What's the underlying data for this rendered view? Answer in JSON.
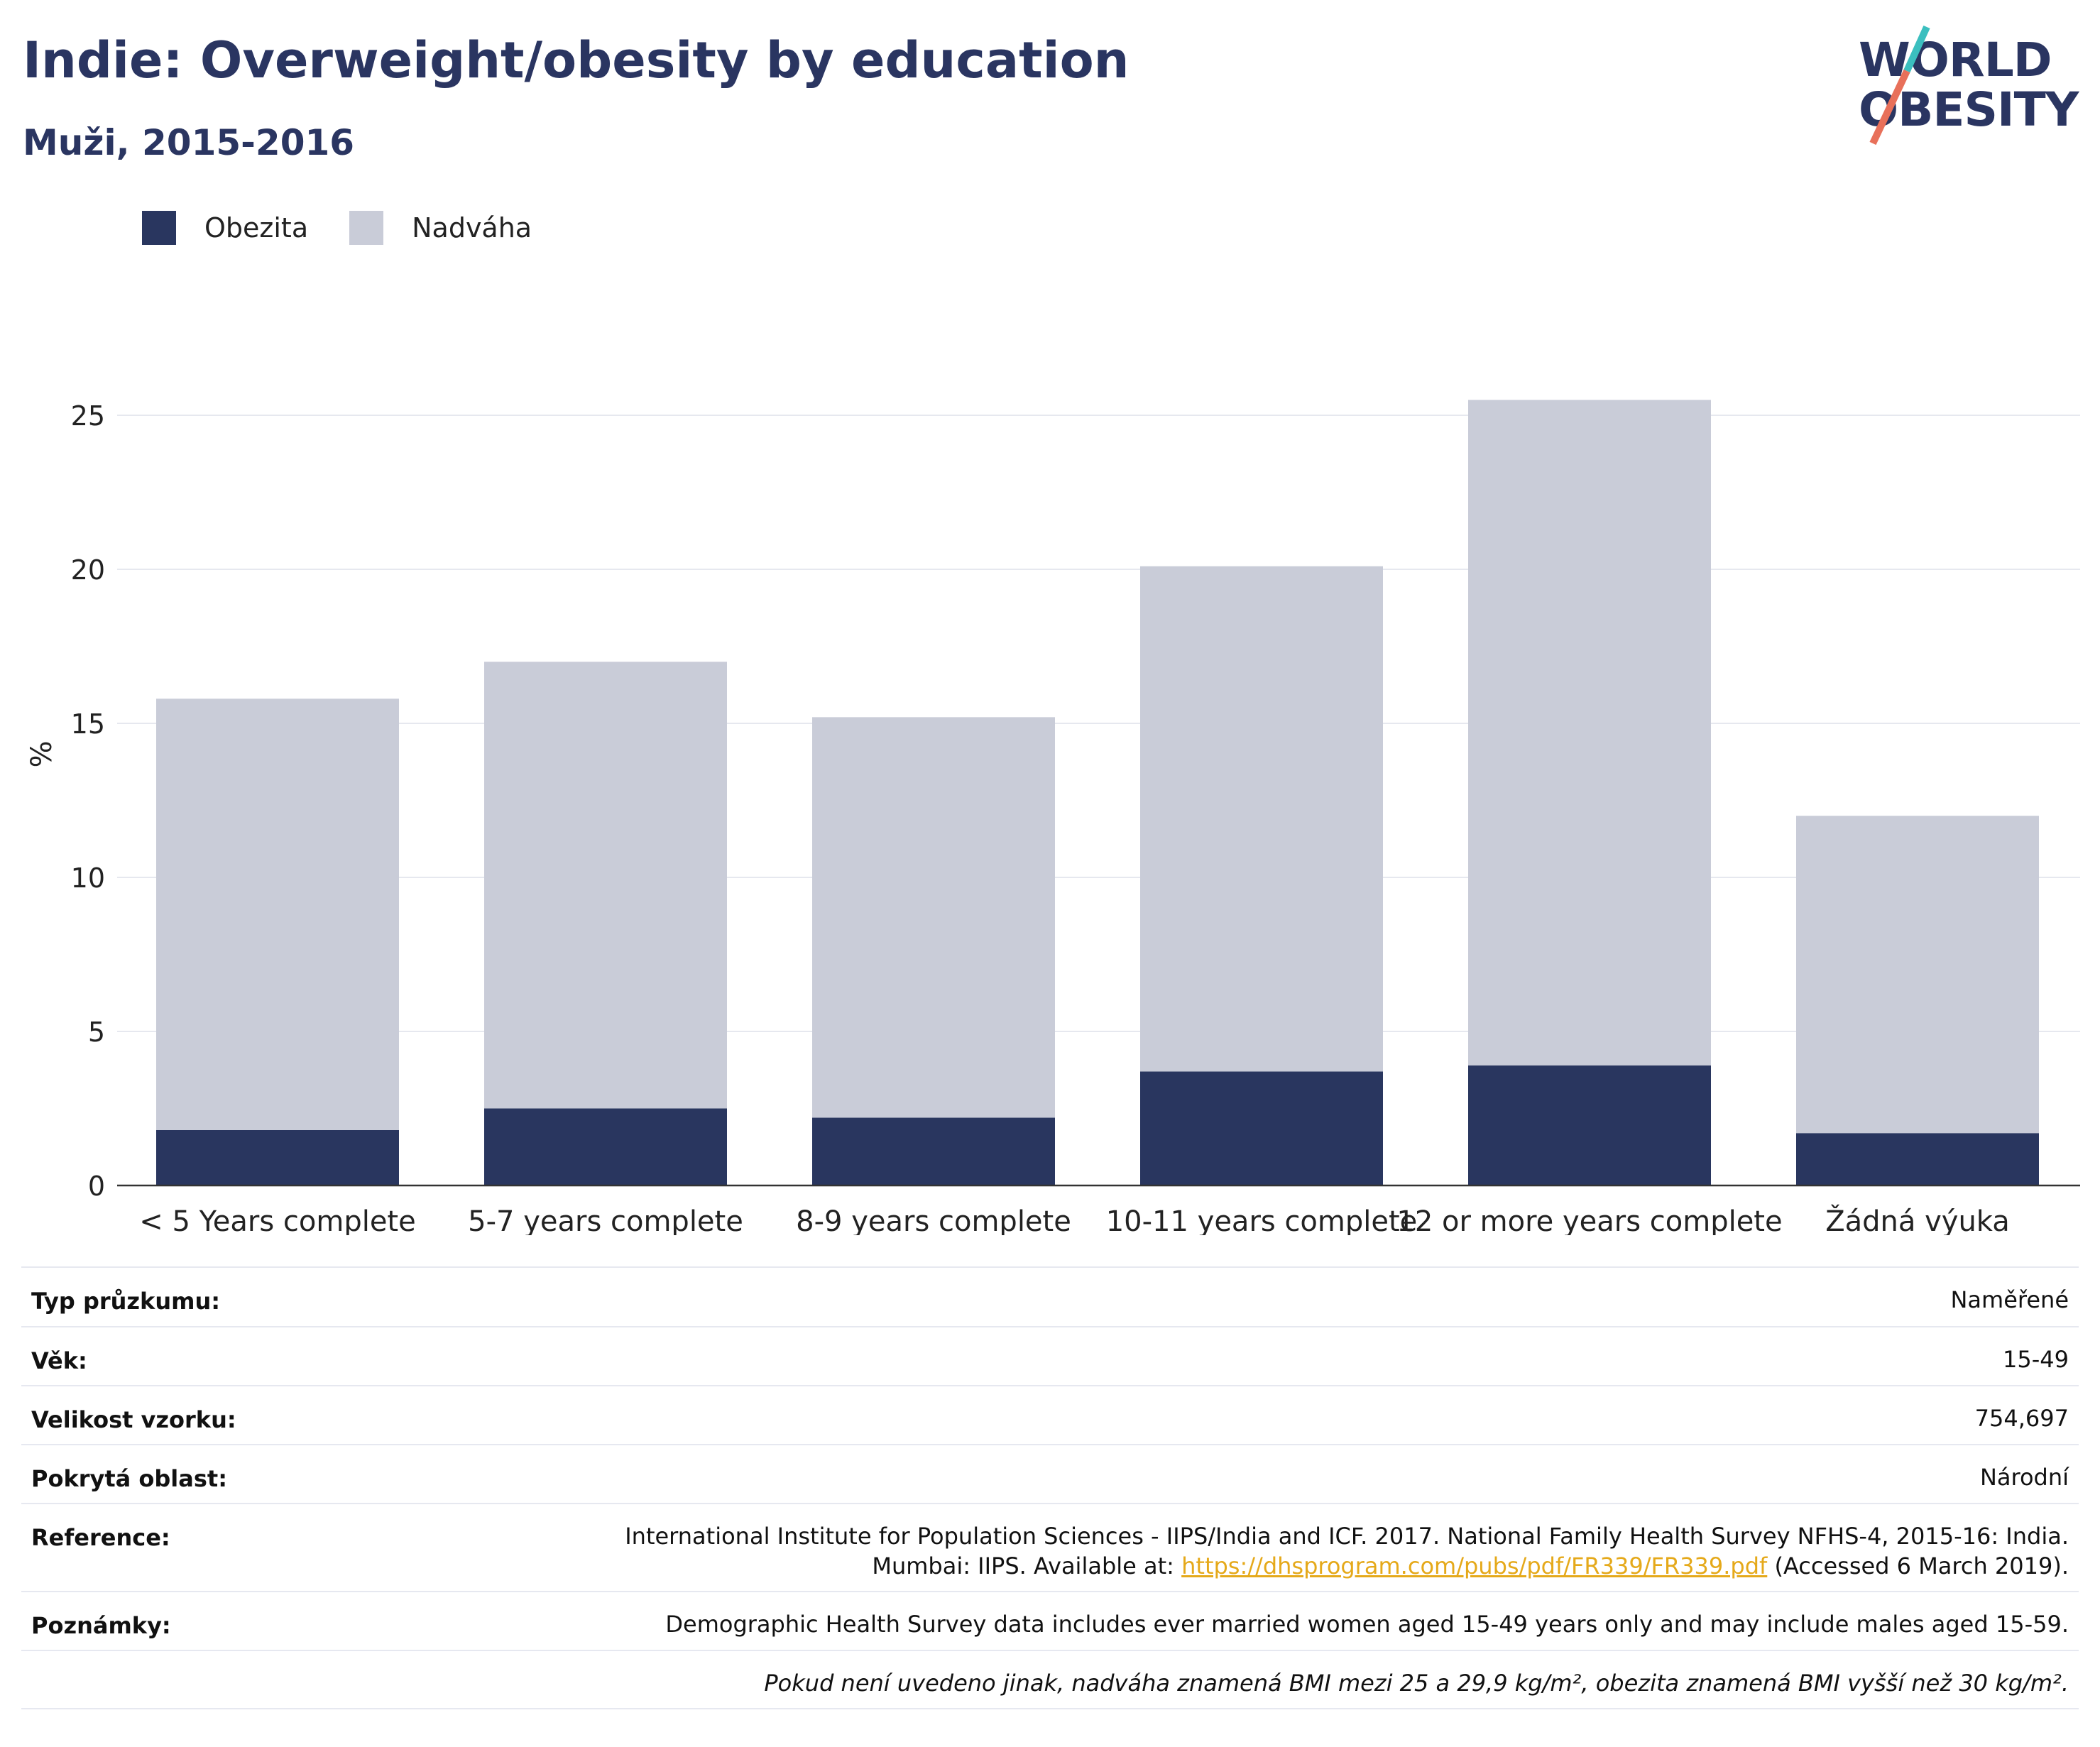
{
  "header": {
    "title": "Indie: Overweight/obesity by education",
    "subtitle": "Muži, 2015-2016"
  },
  "logo": {
    "line1": "WORLD",
    "line2": "OBESITY",
    "colors": {
      "text": "#2a3561",
      "slash_top": "#3bbfbf",
      "slash_bottom": "#e8705a"
    }
  },
  "legend": {
    "items": [
      {
        "label": "Obezita",
        "color": "#29365f"
      },
      {
        "label": "Nadváha",
        "color": "#c9ccd8"
      }
    ]
  },
  "chart_data": {
    "type": "bar",
    "stacked": true,
    "title": "Indie: Overweight/obesity by education",
    "subtitle": "Muži, 2015-2016",
    "xlabel": "",
    "ylabel": "%",
    "ylim": [
      0,
      27
    ],
    "yticks": [
      0,
      5,
      10,
      15,
      20,
      25
    ],
    "grid": true,
    "legend_position": "top-left",
    "categories": [
      "< 5 Years complete",
      "5-7 years complete",
      "8-9 years complete",
      "10-11 years complete",
      "12 or more years complete",
      "Žádná výuka"
    ],
    "series": [
      {
        "name": "Obezita",
        "color": "#29365f",
        "values": [
          1.8,
          2.5,
          2.2,
          3.7,
          3.9,
          1.7
        ]
      },
      {
        "name": "Nadváha",
        "color": "#c9ccd8",
        "values": [
          14.0,
          14.5,
          13.0,
          16.4,
          21.6,
          10.3
        ]
      }
    ]
  },
  "info": {
    "rows": [
      {
        "label": "Typ průzkumu:",
        "value": "Naměřené"
      },
      {
        "label": "Věk:",
        "value": "15-49"
      },
      {
        "label": "Velikost vzorku:",
        "value": "754,697"
      },
      {
        "label": "Pokrytá oblast:",
        "value": "Národní"
      }
    ],
    "reference": {
      "label": "Reference:",
      "line1": "International Institute for Population Sciences - IIPS/India and ICF. 2017. National Family Health Survey NFHS-4, 2015-16: India.",
      "line2_prefix": "Mumbai: IIPS. Available at: ",
      "link": "https://dhsprogram.com/pubs/pdf/FR339/FR339.pdf",
      "line2_suffix": " (Accessed 6 March 2019)."
    },
    "notes": {
      "label": "Poznámky:",
      "value": "Demographic Health Survey data includes ever married women aged 15-49 years only and may include males aged 15-59."
    },
    "footnote": "Pokud není uvedeno jinak, nadváha znamená BMI mezi 25 a 29,9 kg/m², obezita znamená BMI vyšší než 30 kg/m²."
  }
}
